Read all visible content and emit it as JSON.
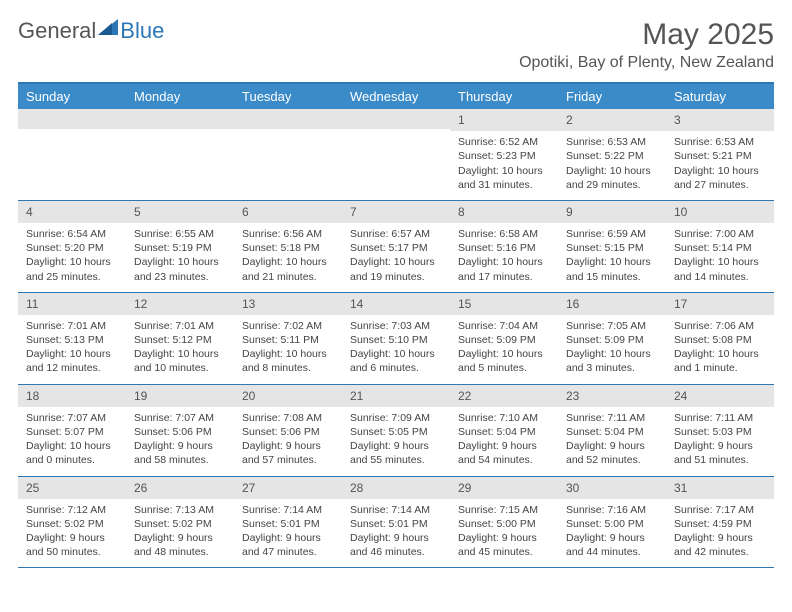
{
  "logo": {
    "general": "General",
    "blue": "Blue"
  },
  "header": {
    "title": "May 2025",
    "location": "Opotiki, Bay of Plenty, New Zealand"
  },
  "colors": {
    "accent": "#3b8bc9",
    "border": "#2d77b6",
    "daynum_bg": "#e5e5e5",
    "text": "#555555"
  },
  "day_names": [
    "Sunday",
    "Monday",
    "Tuesday",
    "Wednesday",
    "Thursday",
    "Friday",
    "Saturday"
  ],
  "weeks": [
    [
      {
        "empty": true
      },
      {
        "empty": true
      },
      {
        "empty": true
      },
      {
        "empty": true
      },
      {
        "day": "1",
        "sunrise": "Sunrise: 6:52 AM",
        "sunset": "Sunset: 5:23 PM",
        "daylight": "Daylight: 10 hours and 31 minutes."
      },
      {
        "day": "2",
        "sunrise": "Sunrise: 6:53 AM",
        "sunset": "Sunset: 5:22 PM",
        "daylight": "Daylight: 10 hours and 29 minutes."
      },
      {
        "day": "3",
        "sunrise": "Sunrise: 6:53 AM",
        "sunset": "Sunset: 5:21 PM",
        "daylight": "Daylight: 10 hours and 27 minutes."
      }
    ],
    [
      {
        "day": "4",
        "sunrise": "Sunrise: 6:54 AM",
        "sunset": "Sunset: 5:20 PM",
        "daylight": "Daylight: 10 hours and 25 minutes."
      },
      {
        "day": "5",
        "sunrise": "Sunrise: 6:55 AM",
        "sunset": "Sunset: 5:19 PM",
        "daylight": "Daylight: 10 hours and 23 minutes."
      },
      {
        "day": "6",
        "sunrise": "Sunrise: 6:56 AM",
        "sunset": "Sunset: 5:18 PM",
        "daylight": "Daylight: 10 hours and 21 minutes."
      },
      {
        "day": "7",
        "sunrise": "Sunrise: 6:57 AM",
        "sunset": "Sunset: 5:17 PM",
        "daylight": "Daylight: 10 hours and 19 minutes."
      },
      {
        "day": "8",
        "sunrise": "Sunrise: 6:58 AM",
        "sunset": "Sunset: 5:16 PM",
        "daylight": "Daylight: 10 hours and 17 minutes."
      },
      {
        "day": "9",
        "sunrise": "Sunrise: 6:59 AM",
        "sunset": "Sunset: 5:15 PM",
        "daylight": "Daylight: 10 hours and 15 minutes."
      },
      {
        "day": "10",
        "sunrise": "Sunrise: 7:00 AM",
        "sunset": "Sunset: 5:14 PM",
        "daylight": "Daylight: 10 hours and 14 minutes."
      }
    ],
    [
      {
        "day": "11",
        "sunrise": "Sunrise: 7:01 AM",
        "sunset": "Sunset: 5:13 PM",
        "daylight": "Daylight: 10 hours and 12 minutes."
      },
      {
        "day": "12",
        "sunrise": "Sunrise: 7:01 AM",
        "sunset": "Sunset: 5:12 PM",
        "daylight": "Daylight: 10 hours and 10 minutes."
      },
      {
        "day": "13",
        "sunrise": "Sunrise: 7:02 AM",
        "sunset": "Sunset: 5:11 PM",
        "daylight": "Daylight: 10 hours and 8 minutes."
      },
      {
        "day": "14",
        "sunrise": "Sunrise: 7:03 AM",
        "sunset": "Sunset: 5:10 PM",
        "daylight": "Daylight: 10 hours and 6 minutes."
      },
      {
        "day": "15",
        "sunrise": "Sunrise: 7:04 AM",
        "sunset": "Sunset: 5:09 PM",
        "daylight": "Daylight: 10 hours and 5 minutes."
      },
      {
        "day": "16",
        "sunrise": "Sunrise: 7:05 AM",
        "sunset": "Sunset: 5:09 PM",
        "daylight": "Daylight: 10 hours and 3 minutes."
      },
      {
        "day": "17",
        "sunrise": "Sunrise: 7:06 AM",
        "sunset": "Sunset: 5:08 PM",
        "daylight": "Daylight: 10 hours and 1 minute."
      }
    ],
    [
      {
        "day": "18",
        "sunrise": "Sunrise: 7:07 AM",
        "sunset": "Sunset: 5:07 PM",
        "daylight": "Daylight: 10 hours and 0 minutes."
      },
      {
        "day": "19",
        "sunrise": "Sunrise: 7:07 AM",
        "sunset": "Sunset: 5:06 PM",
        "daylight": "Daylight: 9 hours and 58 minutes."
      },
      {
        "day": "20",
        "sunrise": "Sunrise: 7:08 AM",
        "sunset": "Sunset: 5:06 PM",
        "daylight": "Daylight: 9 hours and 57 minutes."
      },
      {
        "day": "21",
        "sunrise": "Sunrise: 7:09 AM",
        "sunset": "Sunset: 5:05 PM",
        "daylight": "Daylight: 9 hours and 55 minutes."
      },
      {
        "day": "22",
        "sunrise": "Sunrise: 7:10 AM",
        "sunset": "Sunset: 5:04 PM",
        "daylight": "Daylight: 9 hours and 54 minutes."
      },
      {
        "day": "23",
        "sunrise": "Sunrise: 7:11 AM",
        "sunset": "Sunset: 5:04 PM",
        "daylight": "Daylight: 9 hours and 52 minutes."
      },
      {
        "day": "24",
        "sunrise": "Sunrise: 7:11 AM",
        "sunset": "Sunset: 5:03 PM",
        "daylight": "Daylight: 9 hours and 51 minutes."
      }
    ],
    [
      {
        "day": "25",
        "sunrise": "Sunrise: 7:12 AM",
        "sunset": "Sunset: 5:02 PM",
        "daylight": "Daylight: 9 hours and 50 minutes."
      },
      {
        "day": "26",
        "sunrise": "Sunrise: 7:13 AM",
        "sunset": "Sunset: 5:02 PM",
        "daylight": "Daylight: 9 hours and 48 minutes."
      },
      {
        "day": "27",
        "sunrise": "Sunrise: 7:14 AM",
        "sunset": "Sunset: 5:01 PM",
        "daylight": "Daylight: 9 hours and 47 minutes."
      },
      {
        "day": "28",
        "sunrise": "Sunrise: 7:14 AM",
        "sunset": "Sunset: 5:01 PM",
        "daylight": "Daylight: 9 hours and 46 minutes."
      },
      {
        "day": "29",
        "sunrise": "Sunrise: 7:15 AM",
        "sunset": "Sunset: 5:00 PM",
        "daylight": "Daylight: 9 hours and 45 minutes."
      },
      {
        "day": "30",
        "sunrise": "Sunrise: 7:16 AM",
        "sunset": "Sunset: 5:00 PM",
        "daylight": "Daylight: 9 hours and 44 minutes."
      },
      {
        "day": "31",
        "sunrise": "Sunrise: 7:17 AM",
        "sunset": "Sunset: 4:59 PM",
        "daylight": "Daylight: 9 hours and 42 minutes."
      }
    ]
  ]
}
